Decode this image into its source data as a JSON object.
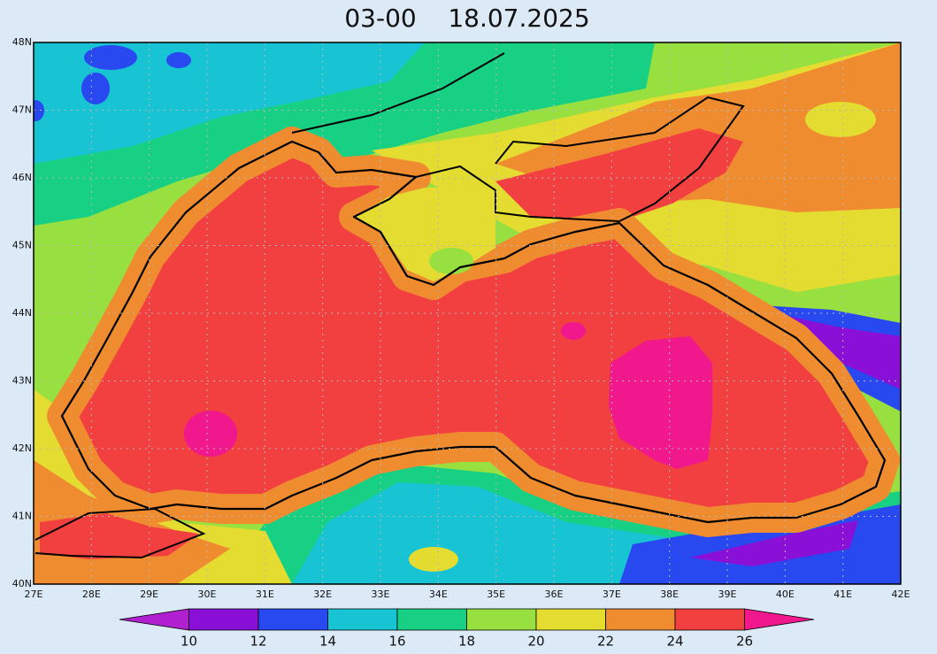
{
  "title": "03-00    18.07.2025",
  "lat_labels": [
    "40N",
    "41N",
    "42N",
    "43N",
    "44N",
    "45N",
    "46N",
    "47N",
    "48N"
  ],
  "lon_labels": [
    "27E",
    "28E",
    "29E",
    "30E",
    "31E",
    "32E",
    "33E",
    "34E",
    "35E",
    "36E",
    "37E",
    "38E",
    "39E",
    "40E",
    "41E",
    "42E"
  ],
  "colorbar": {
    "levels": [
      10,
      12,
      14,
      16,
      18,
      20,
      22,
      24,
      26
    ],
    "colors": [
      "#b020d0",
      "#8a10d8",
      "#2848f0",
      "#18c4d4",
      "#18d084",
      "#98e040",
      "#e4dc30",
      "#f08c30",
      "#f24040",
      "#f0188c"
    ]
  }
}
